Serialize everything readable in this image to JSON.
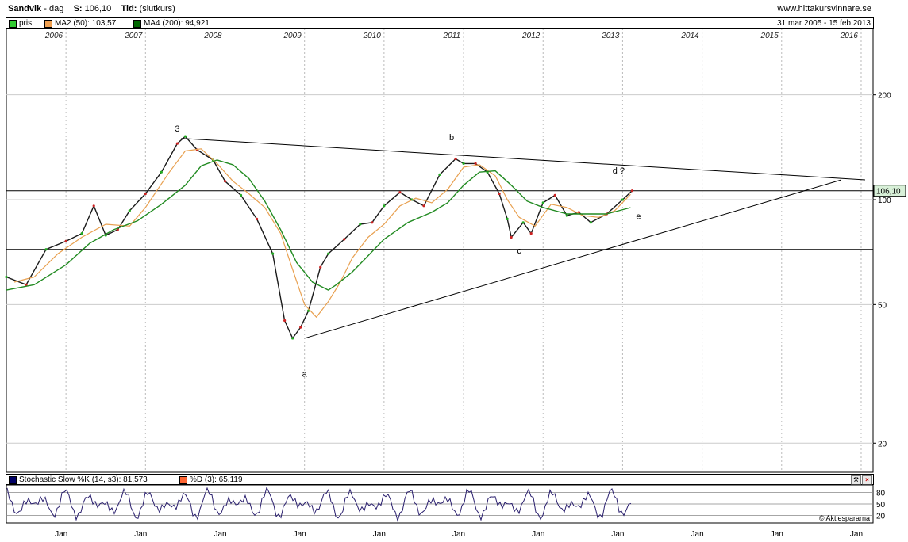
{
  "header": {
    "symbol": "Sandvik",
    "period": "dag",
    "last_label": "S:",
    "last_value": "106,10",
    "time_label": "Tid:",
    "time_value": "(slutkurs)",
    "site": "www.hittakursvinnare.se"
  },
  "legend": {
    "items": [
      {
        "label": "pris",
        "color": "#33cc33"
      },
      {
        "label": "MA2 (50): 103,57",
        "color": "#f0a050"
      },
      {
        "label": "MA4 (200): 94,921",
        "color": "#006600"
      }
    ],
    "range": "31 mar 2005 - 15 feb 2013"
  },
  "stochastic": {
    "k_label": "Stochastic Slow %K (14, s3): 81,573",
    "k_color": "#000066",
    "d_label": "%D (3): 65,119",
    "d_color": "#ff6633",
    "levels": [
      80,
      50,
      20
    ],
    "credit": "© Aktiespararna"
  },
  "chart_data": {
    "type": "line",
    "title": "Sandvik",
    "scale": "log",
    "y_ticks": [
      200,
      100,
      50,
      20
    ],
    "year_labels": [
      "2006",
      "2007",
      "2008",
      "2009",
      "2010",
      "2011",
      "2012",
      "2013",
      "2014",
      "2015",
      "2016"
    ],
    "bottom_labels": [
      "Jan",
      "Jan",
      "Jan",
      "Jan",
      "Jan",
      "Jan",
      "Jan",
      "Jan",
      "Jan",
      "Jan",
      "Jan"
    ],
    "last_price_label": "106,10",
    "series": [
      {
        "name": "pris",
        "x": [
          2005.25,
          2005.5,
          2005.75,
          2006.0,
          2006.2,
          2006.35,
          2006.5,
          2006.65,
          2006.8,
          2007.0,
          2007.2,
          2007.4,
          2007.5,
          2007.65,
          2007.85,
          2008.0,
          2008.2,
          2008.4,
          2008.6,
          2008.75,
          2008.85,
          2008.95,
          2009.05,
          2009.2,
          2009.3,
          2009.5,
          2009.7,
          2009.85,
          2010.0,
          2010.2,
          2010.35,
          2010.5,
          2010.7,
          2010.9,
          2011.0,
          2011.15,
          2011.3,
          2011.45,
          2011.55,
          2011.6,
          2011.75,
          2011.85,
          2012.0,
          2012.15,
          2012.3,
          2012.45,
          2012.6,
          2012.8,
          2013.0,
          2013.12
        ],
        "values": [
          60,
          57,
          72,
          76,
          80,
          96,
          79,
          82,
          93,
          104,
          120,
          145,
          152,
          139,
          130,
          113,
          103,
          88,
          70,
          45,
          40,
          43,
          48,
          64,
          70,
          77,
          85,
          86,
          96,
          105,
          100,
          96,
          118,
          131,
          127,
          127,
          120,
          104,
          88,
          78,
          86,
          80,
          98,
          103,
          90,
          92,
          86,
          91,
          100,
          106.1
        ]
      },
      {
        "name": "MA2 (50)",
        "x": [
          2005.35,
          2005.6,
          2005.9,
          2006.2,
          2006.5,
          2006.8,
          2007.0,
          2007.3,
          2007.5,
          2007.7,
          2007.9,
          2008.1,
          2008.3,
          2008.5,
          2008.7,
          2008.85,
          2009.0,
          2009.15,
          2009.3,
          2009.45,
          2009.6,
          2009.8,
          2010.0,
          2010.2,
          2010.4,
          2010.6,
          2010.8,
          2011.0,
          2011.2,
          2011.4,
          2011.55,
          2011.7,
          2011.9,
          2012.1,
          2012.3,
          2012.5,
          2012.7,
          2012.9,
          2013.1
        ],
        "values": [
          58,
          60,
          70,
          78,
          85,
          84,
          95,
          120,
          138,
          140,
          127,
          113,
          104,
          95,
          80,
          63,
          50,
          46,
          51,
          58,
          68,
          78,
          85,
          96,
          101,
          98,
          107,
          124,
          126,
          117,
          100,
          89,
          84,
          97,
          95,
          90,
          89,
          93,
          103.57
        ]
      },
      {
        "name": "MA4 (200)",
        "x": [
          2005.25,
          2005.6,
          2006.0,
          2006.3,
          2006.6,
          2006.9,
          2007.2,
          2007.5,
          2007.7,
          2007.9,
          2008.1,
          2008.3,
          2008.5,
          2008.7,
          2008.9,
          2009.1,
          2009.3,
          2009.4,
          2009.6,
          2009.8,
          2010.0,
          2010.3,
          2010.6,
          2010.8,
          2011.0,
          2011.2,
          2011.4,
          2011.6,
          2011.8,
          2012.0,
          2012.3,
          2012.5,
          2012.8,
          2013.1
        ],
        "values": [
          55,
          57,
          65,
          75,
          82,
          87,
          97,
          110,
          125,
          130,
          126,
          115,
          99,
          82,
          66,
          58,
          55,
          57,
          62,
          69,
          77,
          86,
          92,
          98,
          110,
          120,
          121,
          110,
          99,
          95,
          91,
          91,
          91,
          94.9
        ]
      }
    ],
    "horizontal_lines": [
      106.1,
      72,
      60
    ],
    "trendlines": [
      {
        "x": [
          2007.45,
          2016.05
        ],
        "values": [
          150,
          114
        ]
      },
      {
        "x": [
          2009.0,
          2015.75
        ],
        "values": [
          40,
          114
        ]
      }
    ],
    "annotations": [
      {
        "label": "3",
        "x": 2007.4,
        "y": 157
      },
      {
        "label": "a",
        "x": 2009.0,
        "y": 31
      },
      {
        "label": "b",
        "x": 2010.85,
        "y": 148
      },
      {
        "label": "c",
        "x": 2011.7,
        "y": 70
      },
      {
        "label": "d ?",
        "x": 2012.95,
        "y": 119
      },
      {
        "label": "e",
        "x": 2013.2,
        "y": 88
      }
    ]
  }
}
